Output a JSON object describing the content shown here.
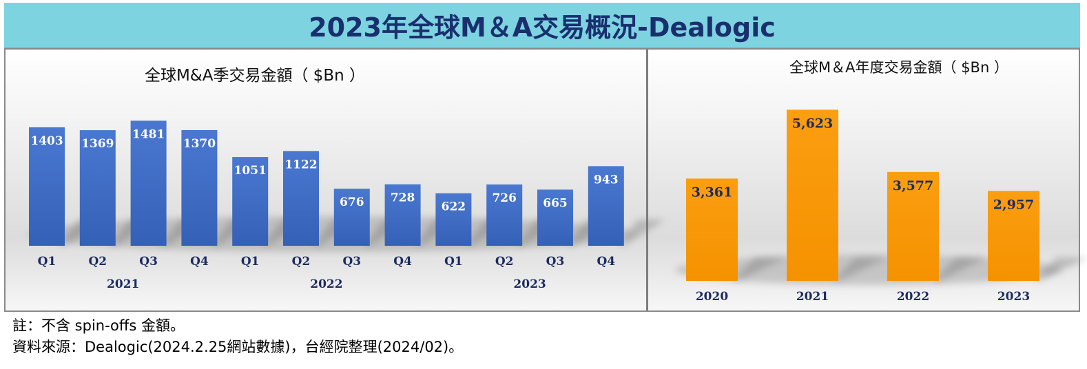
{
  "banner": {
    "title": "2023年全球M＆A交易概況-Dealogic"
  },
  "colors": {
    "banner_bg": "#7ed3e0",
    "quarterly_bar": "#3f6bc4",
    "annual_bar": "#f99a0a",
    "title_text": "#1a2f6e"
  },
  "chart_data": [
    {
      "type": "bar",
      "title": "全球M&A季交易金額（ $Bn ）",
      "categories": [
        "Q1",
        "Q2",
        "Q3",
        "Q4",
        "Q1",
        "Q2",
        "Q3",
        "Q4",
        "Q1",
        "Q2",
        "Q3",
        "Q4"
      ],
      "groups": [
        {
          "label": "2021",
          "start": 0,
          "end": 3
        },
        {
          "label": "2022",
          "start": 4,
          "end": 7
        },
        {
          "label": "2023",
          "start": 8,
          "end": 11
        }
      ],
      "values": [
        1403,
        1369,
        1481,
        1370,
        1051,
        1122,
        676,
        728,
        622,
        726,
        665,
        943
      ],
      "value_labels": [
        "1403",
        "1369",
        "1481",
        "1370",
        "1051",
        "1122",
        "676",
        "728",
        "622",
        "726",
        "665",
        "943"
      ],
      "ylim": [
        0,
        1500
      ],
      "grid": false,
      "legend": "none"
    },
    {
      "type": "bar",
      "title": "全球M＆A年度交易金額（ $Bn ）",
      "categories": [
        "2020",
        "2021",
        "2022",
        "2023"
      ],
      "values": [
        3361,
        5623,
        3577,
        2957
      ],
      "value_labels": [
        "3,361",
        "5,623",
        "3,577",
        "2,957"
      ],
      "ylim": [
        0,
        5700
      ],
      "grid": false,
      "legend": "none"
    }
  ],
  "notes": {
    "note": "註：不含 spin-offs 金額。",
    "source": "資料來源：Dealogic(2024.2.25網站數據)，台經院整理(2024/02)。"
  }
}
